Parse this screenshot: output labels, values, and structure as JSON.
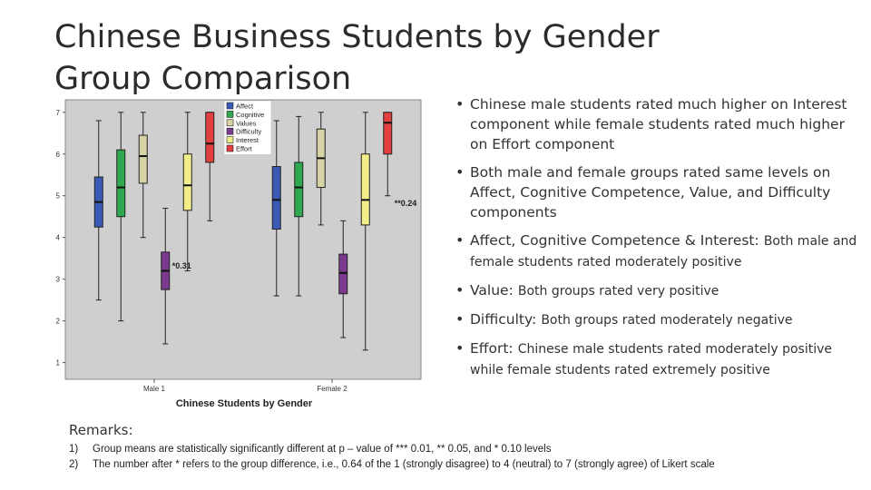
{
  "title": {
    "line1": "Chinese Business Students by Gender",
    "line2": "Group Comparison"
  },
  "bullets": [
    {
      "text": "Chinese male students rated much higher on Interest component while female students rated much higher on Effort component"
    },
    {
      "text": "Both male and female groups rated same levels on Affect, Cognitive Competence, Value, and Difficulty components"
    },
    {
      "head": "Affect, Cognitive Competence & Interest:",
      "text": "Both male and female students rated moderately positive"
    },
    {
      "head": "Value:",
      "text": "Both groups rated very positive"
    },
    {
      "head": "Difficulty:",
      "text": "Both groups rated moderately negative"
    },
    {
      "head": "Effort:",
      "text": "Chinese male students rated moderately positive while female students rated extremely positive"
    }
  ],
  "remarks": {
    "title": "Remarks:",
    "items": [
      {
        "num": "1)",
        "text": "Group means are statistically significantly different at p – value of *** 0.01,  ** 0.05, and * 0.10 levels"
      },
      {
        "num": "2)",
        "text": "The number after * refers to the group difference, i.e., 0.64 of the 1 (strongly disagree) to 4 (neutral) to 7 (strongly agree) of Likert scale"
      }
    ]
  },
  "chart_data": {
    "type": "boxplot",
    "xlabel": "Chinese Students by Gender",
    "ylabel": "",
    "ylim": [
      0.6,
      7.3
    ],
    "yticks": [
      1,
      2,
      3,
      4,
      5,
      6,
      7
    ],
    "categories": [
      "Male 1",
      "Female 2"
    ],
    "legend_position": "top",
    "series": [
      {
        "name": "Affect",
        "color": "#3a5bb5",
        "boxes": [
          {
            "whisker_low": 2.5,
            "q1": 4.25,
            "median": 4.85,
            "q3": 5.45,
            "whisker_high": 6.8
          },
          {
            "whisker_low": 2.6,
            "q1": 4.2,
            "median": 4.9,
            "q3": 5.7,
            "whisker_high": 6.8
          }
        ]
      },
      {
        "name": "Cognitive",
        "color": "#2fa84f",
        "boxes": [
          {
            "whisker_low": 2.0,
            "q1": 4.5,
            "median": 5.2,
            "q3": 6.1,
            "whisker_high": 7.0
          },
          {
            "whisker_low": 2.6,
            "q1": 4.5,
            "median": 5.2,
            "q3": 5.8,
            "whisker_high": 6.9
          }
        ]
      },
      {
        "name": "Values",
        "color": "#d6d3a6",
        "boxes": [
          {
            "whisker_low": 4.0,
            "q1": 5.3,
            "median": 5.95,
            "q3": 6.45,
            "whisker_high": 7.0
          },
          {
            "whisker_low": 4.3,
            "q1": 5.2,
            "median": 5.9,
            "q3": 6.6,
            "whisker_high": 7.0
          }
        ]
      },
      {
        "name": "Difficulty",
        "color": "#7b3a8e",
        "boxes": [
          {
            "whisker_low": 1.45,
            "q1": 2.75,
            "median": 3.2,
            "q3": 3.65,
            "whisker_high": 4.7
          },
          {
            "whisker_low": 1.6,
            "q1": 2.65,
            "median": 3.15,
            "q3": 3.6,
            "whisker_high": 4.4
          }
        ]
      },
      {
        "name": "Interest",
        "color": "#f2ef8a",
        "boxes": [
          {
            "whisker_low": 3.2,
            "q1": 4.65,
            "median": 5.25,
            "q3": 6.0,
            "whisker_high": 7.0
          },
          {
            "whisker_low": 1.3,
            "q1": 4.3,
            "median": 4.9,
            "q3": 6.0,
            "whisker_high": 7.0
          }
        ]
      },
      {
        "name": "Effort",
        "color": "#e2403e",
        "boxes": [
          {
            "whisker_low": 4.4,
            "q1": 5.8,
            "median": 6.25,
            "q3": 7.0,
            "whisker_high": 7.0
          },
          {
            "whisker_low": 5.0,
            "q1": 6.0,
            "median": 6.75,
            "q3": 7.0,
            "whisker_high": 7.0
          }
        ]
      }
    ],
    "annotations": [
      {
        "text": "*0.31",
        "category": 0,
        "series": 3,
        "y": 3.25
      },
      {
        "text": "**0.24",
        "category": 1,
        "series": 5,
        "y": 4.75
      }
    ]
  }
}
